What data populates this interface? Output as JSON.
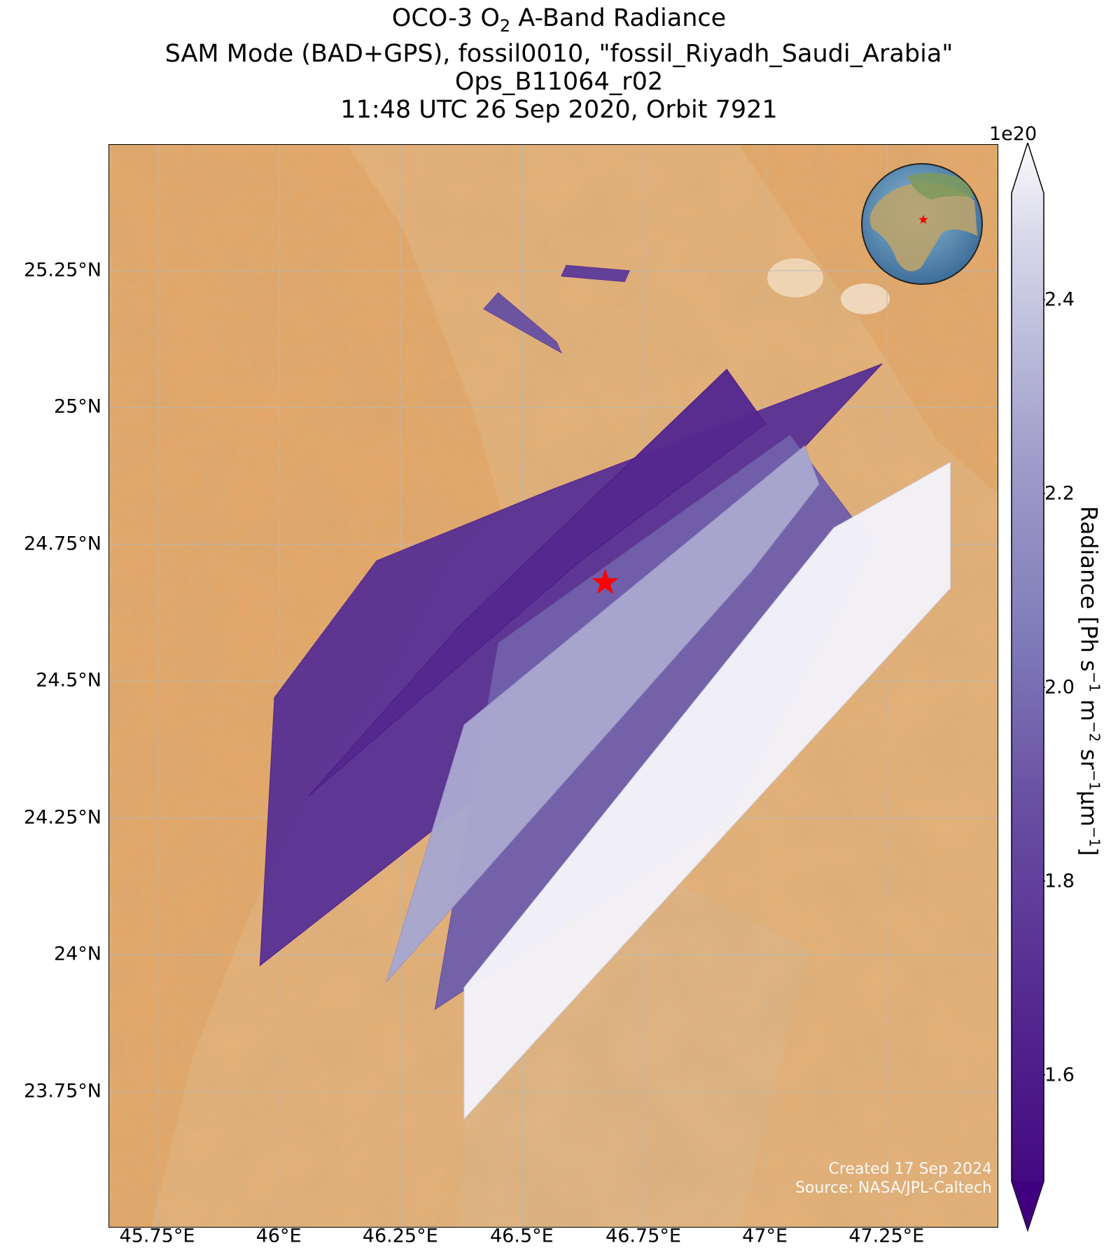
{
  "title": {
    "line1_prefix": "OCO-3 O",
    "line1_sub": "2",
    "line1_suffix": " A-Band Radiance",
    "line2": "SAM Mode (BAD+GPS), fossil0010, \"fossil_Riyadh_Saudi_Arabia\"",
    "line3": "Ops_B11064_r02",
    "line4": "11:48 UTC 26 Sep 2020, Orbit 7921"
  },
  "map": {
    "lon_range": [
      45.65,
      47.48
    ],
    "lat_range": [
      23.5,
      25.48
    ],
    "lon_ticks": [
      {
        "value": 45.75,
        "label": "45.75°E"
      },
      {
        "value": 46.0,
        "label": "46°E"
      },
      {
        "value": 46.25,
        "label": "46.25°E"
      },
      {
        "value": 46.5,
        "label": "46.5°E"
      },
      {
        "value": 46.75,
        "label": "46.75°E"
      },
      {
        "value": 47.0,
        "label": "47°E"
      },
      {
        "value": 47.25,
        "label": "47.25°E"
      }
    ],
    "lat_ticks": [
      {
        "value": 25.25,
        "label": "25.25°N"
      },
      {
        "value": 25.0,
        "label": "25°N"
      },
      {
        "value": 24.75,
        "label": "24.75°N"
      },
      {
        "value": 24.5,
        "label": "24.5°N"
      },
      {
        "value": 24.25,
        "label": "24.25°N"
      },
      {
        "value": 24.0,
        "label": "24°N"
      },
      {
        "value": 23.75,
        "label": "23.75°N"
      }
    ],
    "target": {
      "name": "fossil_Riyadh_Saudi_Arabia",
      "lon": 46.67,
      "lat": 24.68,
      "marker_color": "#ff0000"
    },
    "background_colors": {
      "desert": "#e9b277",
      "dunes": "#ea9f56",
      "rock": "#e1b98e"
    },
    "grid": true
  },
  "chart_data": {
    "type": "heatmap",
    "variable": "Radiance",
    "units": "Ph s-1 m-2 sr-1 µm-1",
    "scale_factor": "1e20",
    "colorscale": "Purples_r",
    "vmin": 1.49,
    "vmax": 2.51,
    "colorbar_ticks": [
      1.6,
      1.8,
      2.0,
      2.2,
      2.4
    ],
    "swaths": [
      {
        "corners": [
          [
            45.96,
            23.98
          ],
          [
            46.42,
            24.3
          ],
          [
            47.24,
            25.08
          ],
          [
            46.56,
            24.85
          ],
          [
            46.2,
            24.72
          ],
          [
            45.99,
            24.47
          ]
        ],
        "mean_value": 1.75
      },
      {
        "corners": [
          [
            46.32,
            23.9
          ],
          [
            46.92,
            24.25
          ],
          [
            47.22,
            24.75
          ],
          [
            47.05,
            24.95
          ],
          [
            46.45,
            24.57
          ]
        ],
        "mean_value": 1.95
      },
      {
        "corners": [
          [
            46.06,
            24.29
          ],
          [
            46.62,
            24.72
          ],
          [
            47.0,
            24.97
          ],
          [
            46.92,
            25.07
          ],
          [
            46.37,
            24.6
          ]
        ],
        "mean_value": 1.7
      },
      {
        "corners": [
          [
            46.22,
            23.95
          ],
          [
            46.97,
            24.7
          ],
          [
            47.11,
            24.86
          ],
          [
            47.08,
            24.93
          ],
          [
            46.38,
            24.42
          ]
        ],
        "mean_value": 2.25
      },
      {
        "corners": [
          [
            46.38,
            23.7
          ],
          [
            47.38,
            24.67
          ],
          [
            47.38,
            24.9
          ],
          [
            47.14,
            24.78
          ],
          [
            46.38,
            23.94
          ]
        ],
        "mean_value": 2.49
      },
      {
        "corners": [
          [
            46.58,
            25.24
          ],
          [
            46.71,
            25.23
          ],
          [
            46.72,
            25.25
          ],
          [
            46.59,
            25.26
          ]
        ],
        "mean_value": 1.8
      },
      {
        "corners": [
          [
            46.42,
            25.18
          ],
          [
            46.58,
            25.1
          ],
          [
            46.57,
            25.12
          ],
          [
            46.45,
            25.21
          ]
        ],
        "mean_value": 1.9
      }
    ]
  },
  "colorbar": {
    "exponent": "1e20",
    "tick_labels": [
      "2.4",
      "2.2",
      "2.0",
      "1.8",
      "1.6"
    ],
    "label_prefix": "Radiance [Ph s",
    "label_exp1": "−1",
    "label_m": " m",
    "label_exp2": "−2",
    "label_sr": " sr",
    "label_exp3": "−1",
    "label_um": "μm",
    "label_exp4": "−1",
    "label_suffix": "]"
  },
  "inset": {
    "shows": "globe",
    "marker_color": "#ff0000"
  },
  "credits": {
    "line1": "Created 17 Sep 2024",
    "line2": "Source: NASA/JPL-Caltech"
  }
}
